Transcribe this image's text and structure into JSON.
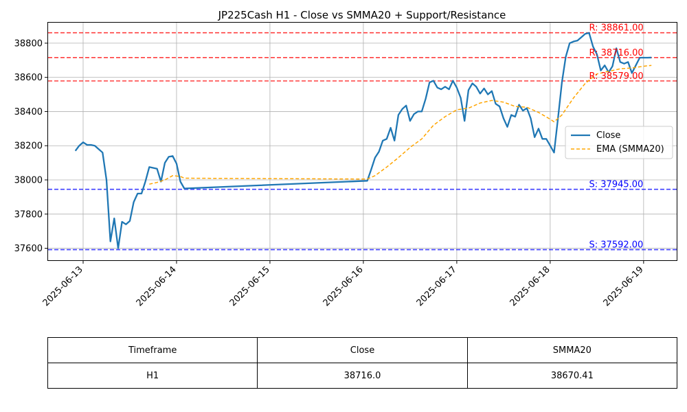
{
  "chart_data": {
    "type": "line",
    "title": "JP225Cash H1 - Close vs SMMA20 + Support/Resistance",
    "xlabel": "",
    "ylabel": "",
    "x_ticks": [
      "2025-06-13",
      "2025-06-14",
      "2025-06-15",
      "2025-06-16",
      "2025-06-17",
      "2025-06-18",
      "2025-06-19"
    ],
    "y_ticks": [
      37600,
      37800,
      38000,
      38200,
      38400,
      38600,
      38800
    ],
    "xlim": [
      "2025-06-12T15:00",
      "2025-06-19T08:30"
    ],
    "ylim": [
      37530,
      38920
    ],
    "grid": true,
    "legend_position": "center-right",
    "series": [
      {
        "name": "Close",
        "color": "#1f77b4",
        "style": "solid",
        "points": [
          [
            "2025-06-12T22:00",
            38170
          ],
          [
            "2025-06-12T23:00",
            38200
          ],
          [
            "2025-06-13T00:00",
            38220
          ],
          [
            "2025-06-13T01:00",
            38205
          ],
          [
            "2025-06-13T02:00",
            38205
          ],
          [
            "2025-06-13T03:00",
            38200
          ],
          [
            "2025-06-13T04:00",
            38180
          ],
          [
            "2025-06-13T05:00",
            38160
          ],
          [
            "2025-06-13T06:00",
            38000
          ],
          [
            "2025-06-13T07:00",
            37640
          ],
          [
            "2025-06-13T08:00",
            37775
          ],
          [
            "2025-06-13T09:00",
            37600
          ],
          [
            "2025-06-13T10:00",
            37755
          ],
          [
            "2025-06-13T11:00",
            37740
          ],
          [
            "2025-06-13T12:00",
            37760
          ],
          [
            "2025-06-13T13:00",
            37870
          ],
          [
            "2025-06-13T14:00",
            37920
          ],
          [
            "2025-06-13T15:00",
            37920
          ],
          [
            "2025-06-13T16:00",
            37990
          ],
          [
            "2025-06-13T17:00",
            38075
          ],
          [
            "2025-06-13T19:00",
            38065
          ],
          [
            "2025-06-13T20:00",
            37990
          ],
          [
            "2025-06-13T21:00",
            38100
          ],
          [
            "2025-06-13T22:00",
            38135
          ],
          [
            "2025-06-13T23:00",
            38140
          ],
          [
            "2025-06-14T00:00",
            38095
          ],
          [
            "2025-06-14T01:00",
            37990
          ],
          [
            "2025-06-14T02:00",
            37950
          ],
          [
            "2025-06-16T01:00",
            37995
          ],
          [
            "2025-06-16T02:00",
            38060
          ],
          [
            "2025-06-16T03:00",
            38130
          ],
          [
            "2025-06-16T04:00",
            38165
          ],
          [
            "2025-06-16T05:00",
            38230
          ],
          [
            "2025-06-16T06:00",
            38240
          ],
          [
            "2025-06-16T07:00",
            38305
          ],
          [
            "2025-06-16T08:00",
            38230
          ],
          [
            "2025-06-16T09:00",
            38380
          ],
          [
            "2025-06-16T10:00",
            38415
          ],
          [
            "2025-06-16T11:00",
            38435
          ],
          [
            "2025-06-16T12:00",
            38345
          ],
          [
            "2025-06-16T13:00",
            38385
          ],
          [
            "2025-06-16T14:00",
            38400
          ],
          [
            "2025-06-16T15:00",
            38400
          ],
          [
            "2025-06-16T16:00",
            38475
          ],
          [
            "2025-06-16T17:00",
            38570
          ],
          [
            "2025-06-16T18:00",
            38580
          ],
          [
            "2025-06-16T19:00",
            38540
          ],
          [
            "2025-06-16T20:00",
            38530
          ],
          [
            "2025-06-16T21:00",
            38545
          ],
          [
            "2025-06-16T22:00",
            38530
          ],
          [
            "2025-06-16T23:00",
            38580
          ],
          [
            "2025-06-17T00:00",
            38540
          ],
          [
            "2025-06-17T01:00",
            38480
          ],
          [
            "2025-06-17T02:00",
            38345
          ],
          [
            "2025-06-17T03:00",
            38525
          ],
          [
            "2025-06-17T04:00",
            38565
          ],
          [
            "2025-06-17T05:00",
            38545
          ],
          [
            "2025-06-17T06:00",
            38505
          ],
          [
            "2025-06-17T07:00",
            38535
          ],
          [
            "2025-06-17T08:00",
            38500
          ],
          [
            "2025-06-17T09:00",
            38520
          ],
          [
            "2025-06-17T10:00",
            38445
          ],
          [
            "2025-06-17T11:00",
            38430
          ],
          [
            "2025-06-17T12:00",
            38360
          ],
          [
            "2025-06-17T13:00",
            38310
          ],
          [
            "2025-06-17T14:00",
            38380
          ],
          [
            "2025-06-17T15:00",
            38370
          ],
          [
            "2025-06-17T16:00",
            38440
          ],
          [
            "2025-06-17T17:00",
            38405
          ],
          [
            "2025-06-17T18:00",
            38420
          ],
          [
            "2025-06-17T19:00",
            38360
          ],
          [
            "2025-06-17T20:00",
            38250
          ],
          [
            "2025-06-17T21:00",
            38300
          ],
          [
            "2025-06-17T22:00",
            38240
          ],
          [
            "2025-06-17T23:00",
            38240
          ],
          [
            "2025-06-18T00:00",
            38200
          ],
          [
            "2025-06-18T01:00",
            38160
          ],
          [
            "2025-06-18T02:00",
            38360
          ],
          [
            "2025-06-18T03:00",
            38570
          ],
          [
            "2025-06-18T04:00",
            38720
          ],
          [
            "2025-06-18T05:00",
            38800
          ],
          [
            "2025-06-18T06:00",
            38810
          ],
          [
            "2025-06-18T07:00",
            38815
          ],
          [
            "2025-06-18T08:00",
            38835
          ],
          [
            "2025-06-18T09:00",
            38855
          ],
          [
            "2025-06-18T10:00",
            38860
          ],
          [
            "2025-06-18T11:00",
            38780
          ],
          [
            "2025-06-18T12:00",
            38735
          ],
          [
            "2025-06-18T13:00",
            38640
          ],
          [
            "2025-06-18T14:00",
            38670
          ],
          [
            "2025-06-18T15:00",
            38630
          ],
          [
            "2025-06-18T16:00",
            38665
          ],
          [
            "2025-06-18T17:00",
            38770
          ],
          [
            "2025-06-18T18:00",
            38690
          ],
          [
            "2025-06-18T19:00",
            38680
          ],
          [
            "2025-06-18T20:00",
            38690
          ],
          [
            "2025-06-18T21:00",
            38625
          ],
          [
            "2025-06-18T22:00",
            38670
          ],
          [
            "2025-06-18T23:00",
            38715
          ],
          [
            "2025-06-19T00:00",
            38715
          ],
          [
            "2025-06-19T01:00",
            38715
          ],
          [
            "2025-06-19T02:00",
            38716
          ]
        ]
      },
      {
        "name": "EMA (SMMA20)",
        "color": "#ffa500",
        "style": "dashed",
        "points": [
          [
            "2025-06-13T17:00",
            37975
          ],
          [
            "2025-06-13T19:00",
            37985
          ],
          [
            "2025-06-13T21:00",
            38000
          ],
          [
            "2025-06-13T23:00",
            38025
          ],
          [
            "2025-06-14T01:00",
            38020
          ],
          [
            "2025-06-14T02:00",
            38010
          ],
          [
            "2025-06-16T01:00",
            38005
          ],
          [
            "2025-06-16T03:00",
            38025
          ],
          [
            "2025-06-16T06:00",
            38075
          ],
          [
            "2025-06-16T09:00",
            38130
          ],
          [
            "2025-06-16T12:00",
            38190
          ],
          [
            "2025-06-16T15:00",
            38240
          ],
          [
            "2025-06-16T18:00",
            38320
          ],
          [
            "2025-06-16T21:00",
            38370
          ],
          [
            "2025-06-17T00:00",
            38410
          ],
          [
            "2025-06-17T03:00",
            38420
          ],
          [
            "2025-06-17T06:00",
            38450
          ],
          [
            "2025-06-17T09:00",
            38465
          ],
          [
            "2025-06-17T12:00",
            38455
          ],
          [
            "2025-06-17T15:00",
            38430
          ],
          [
            "2025-06-17T18:00",
            38425
          ],
          [
            "2025-06-17T21:00",
            38395
          ],
          [
            "2025-06-18T00:00",
            38355
          ],
          [
            "2025-06-18T01:00",
            38340
          ],
          [
            "2025-06-18T03:00",
            38380
          ],
          [
            "2025-06-18T06:00",
            38480
          ],
          [
            "2025-06-18T09:00",
            38565
          ],
          [
            "2025-06-18T12:00",
            38620
          ],
          [
            "2025-06-18T15:00",
            38635
          ],
          [
            "2025-06-18T18:00",
            38650
          ],
          [
            "2025-06-18T21:00",
            38655
          ],
          [
            "2025-06-19T00:00",
            38665
          ],
          [
            "2025-06-19T02:00",
            38670
          ]
        ]
      }
    ],
    "resistance": [
      {
        "value": 38861.0,
        "label": "R: 38861.00"
      },
      {
        "value": 38716.0,
        "label": "R: 38716.00"
      },
      {
        "value": 38579.0,
        "label": "R: 38579.00"
      }
    ],
    "support": [
      {
        "value": 37945.0,
        "label": "S: 37945.00"
      },
      {
        "value": 37592.0,
        "label": "S: 37592.00"
      }
    ],
    "colors": {
      "resistance": "#ff0000",
      "support": "#0000ff",
      "close": "#1f77b4",
      "smma": "#ffa500",
      "grid": "#b0b0b0"
    }
  },
  "table": {
    "headers": [
      "Timeframe",
      "Close",
      "SMMA20"
    ],
    "rows": [
      [
        "H1",
        "38716.0",
        "38670.41"
      ]
    ]
  }
}
